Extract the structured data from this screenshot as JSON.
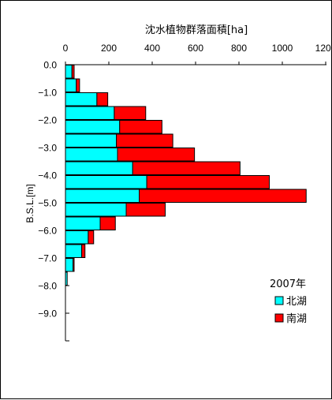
{
  "chart_data": {
    "type": "bar",
    "orientation": "horizontal",
    "stacked": true,
    "title": "沈水植物群落面積[ha]",
    "ylabel": "B.S.L.[m]",
    "xlim": [
      0,
      1200
    ],
    "x_ticks": [
      "0",
      "200",
      "400",
      "600",
      "800",
      "1000",
      "1200"
    ],
    "ylim": [
      0.0,
      -10.0
    ],
    "y_ticks": [
      "0.0",
      "−1.0",
      "−2.0",
      "−3.0",
      "−4.0",
      "−5.0",
      "−6.0",
      "−7.0",
      "−8.0",
      "−9.0"
    ],
    "bin_size": 0.5,
    "depth_start": [
      0.0,
      -0.5,
      -1.0,
      -1.5,
      -2.0,
      -2.5,
      -3.0,
      -3.5,
      -4.0,
      -4.5,
      -5.0,
      -5.5,
      -6.0,
      -6.5,
      -7.0,
      -7.5
    ],
    "legend_title": "2007年",
    "legend_position": "right",
    "series": [
      {
        "name": "北湖",
        "color": "#00FFFF",
        "values": [
          30,
          50,
          145,
          225,
          250,
          235,
          240,
          310,
          375,
          340,
          280,
          160,
          105,
          75,
          35,
          8
        ]
      },
      {
        "name": "南湖",
        "color": "#FF0000",
        "values": [
          10,
          15,
          50,
          145,
          195,
          260,
          355,
          495,
          565,
          770,
          180,
          70,
          25,
          15,
          5,
          0
        ]
      }
    ]
  }
}
